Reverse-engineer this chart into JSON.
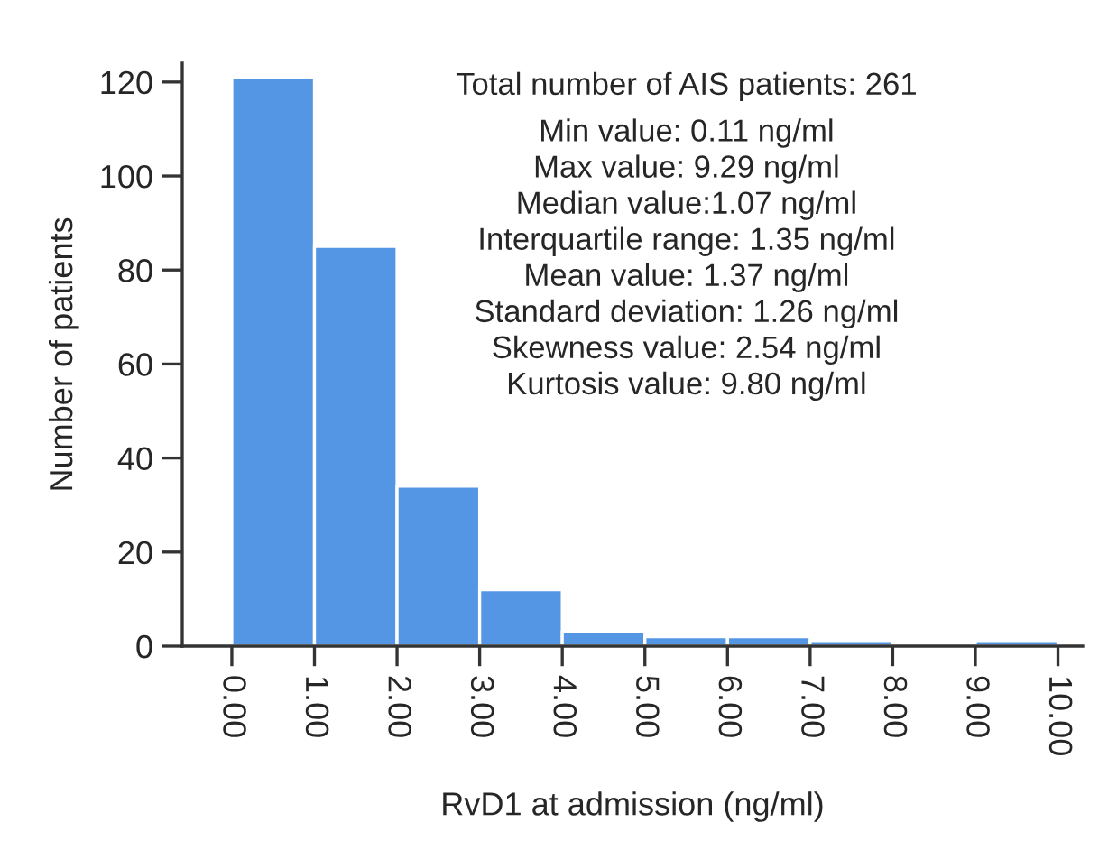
{
  "chart_data": {
    "type": "histogram",
    "xlabel": "RvD1 at admission (ng/ml)",
    "ylabel": "Number of patients",
    "bins": [
      0,
      1,
      2,
      3,
      4,
      5,
      6,
      7,
      8,
      9,
      10
    ],
    "values": [
      121,
      85,
      34,
      12,
      3,
      2,
      2,
      1,
      0,
      1
    ],
    "color": "#5596e4",
    "xlim": [
      -0.6,
      10.3
    ],
    "ylim": [
      0,
      124
    ],
    "xticks": [
      {
        "value": 0,
        "label": "0.00"
      },
      {
        "value": 1,
        "label": "1.00"
      },
      {
        "value": 2,
        "label": "2.00"
      },
      {
        "value": 3,
        "label": "3.00"
      },
      {
        "value": 4,
        "label": "4.00"
      },
      {
        "value": 5,
        "label": "5.00"
      },
      {
        "value": 6,
        "label": "6.00"
      },
      {
        "value": 7,
        "label": "7.00"
      },
      {
        "value": 8,
        "label": "8.00"
      },
      {
        "value": 9,
        "label": "9.00"
      },
      {
        "value": 10,
        "label": "10.00"
      }
    ],
    "yticks": [
      0,
      20,
      40,
      60,
      80,
      100,
      120
    ],
    "grid": false,
    "annotations": [
      "Total number of AIS patients: 261",
      "Min value: 0.11 ng/ml",
      "Max value: 9.29 ng/ml",
      "Median value:1.07 ng/ml",
      "Interquartile range: 1.35 ng/ml",
      "Mean value: 1.37 ng/ml",
      "Standard deviation: 1.26 ng/ml",
      "Skewness value: 2.54 ng/ml",
      "Kurtosis value: 9.80 ng/ml"
    ]
  }
}
